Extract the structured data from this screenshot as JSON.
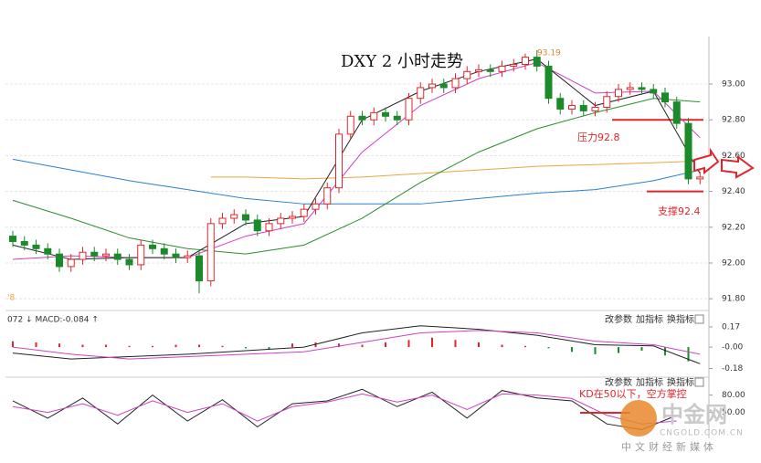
{
  "chart_data": [
    {
      "type": "candlestick",
      "title": "DXY 2 小时走势",
      "left_note": "'8",
      "open": [
        92.15,
        92.12,
        92.1,
        92.08,
        92.05,
        91.98,
        92.02,
        92.06,
        92.04,
        92.05,
        92.02,
        91.99,
        92.1,
        92.08,
        92.05,
        92.03,
        92.04,
        91.9,
        92.22,
        92.25,
        92.27,
        92.24,
        92.18,
        92.22,
        92.25,
        92.26,
        92.3,
        92.33,
        92.42,
        92.72,
        92.82,
        92.8,
        92.84,
        92.82,
        92.8,
        92.92,
        92.98,
        93.0,
        92.98,
        93.03,
        93.07,
        93.08,
        93.07,
        93.1,
        93.11,
        93.15,
        93.1,
        92.92,
        92.86,
        92.88,
        92.85,
        92.87,
        92.93,
        92.97,
        92.98,
        92.97,
        92.95,
        92.9,
        92.78,
        92.47
      ],
      "high": [
        92.18,
        92.15,
        92.13,
        92.11,
        92.08,
        92.05,
        92.09,
        92.09,
        92.08,
        92.08,
        92.05,
        92.13,
        92.13,
        92.11,
        92.08,
        92.07,
        92.07,
        92.25,
        92.28,
        92.3,
        92.3,
        92.27,
        92.25,
        92.28,
        92.29,
        92.33,
        92.36,
        92.45,
        92.75,
        92.85,
        92.85,
        92.87,
        92.87,
        92.85,
        92.95,
        93.01,
        93.03,
        93.03,
        93.06,
        93.1,
        93.11,
        93.11,
        93.13,
        93.14,
        93.17,
        93.19,
        93.13,
        92.95,
        92.91,
        92.91,
        92.9,
        92.96,
        93.0,
        93.01,
        93.01,
        93.0,
        92.98,
        92.93,
        92.81,
        92.51
      ],
      "low": [
        92.09,
        92.07,
        92.05,
        92.02,
        91.95,
        91.95,
        91.99,
        92.01,
        92.01,
        91.99,
        91.96,
        91.96,
        92.05,
        92.02,
        92.0,
        92.0,
        91.83,
        91.87,
        92.19,
        92.22,
        92.21,
        92.15,
        92.15,
        92.19,
        92.22,
        92.23,
        92.27,
        92.3,
        92.39,
        92.69,
        92.77,
        92.77,
        92.79,
        92.77,
        92.77,
        92.89,
        92.95,
        92.95,
        92.95,
        93.0,
        93.04,
        93.04,
        93.04,
        93.07,
        93.08,
        93.07,
        92.89,
        92.83,
        92.83,
        92.82,
        92.82,
        92.84,
        92.9,
        92.94,
        92.94,
        92.92,
        92.87,
        92.75,
        92.44,
        92.44
      ],
      "close": [
        92.12,
        92.1,
        92.08,
        92.05,
        91.98,
        92.02,
        92.06,
        92.04,
        92.05,
        92.02,
        91.99,
        92.1,
        92.08,
        92.05,
        92.03,
        92.04,
        91.9,
        92.22,
        92.25,
        92.27,
        92.24,
        92.18,
        92.22,
        92.25,
        92.26,
        92.3,
        92.33,
        92.42,
        92.72,
        92.82,
        92.8,
        92.84,
        92.82,
        92.8,
        92.92,
        92.98,
        93.0,
        92.98,
        93.03,
        93.07,
        93.08,
        93.07,
        93.1,
        93.11,
        93.15,
        93.1,
        92.92,
        92.86,
        92.88,
        92.85,
        92.87,
        92.93,
        92.97,
        92.98,
        92.97,
        92.95,
        92.9,
        92.78,
        92.47,
        92.48
      ],
      "up_color": "#e0262b",
      "down_color": "#1a8a2a",
      "series": [
        {
          "color": "#2a7fd0",
          "x": [
            0,
            5,
            10,
            15,
            20,
            25,
            30,
            35,
            40,
            45,
            50,
            55,
            59
          ],
          "values": [
            92.58,
            92.52,
            92.46,
            92.41,
            92.36,
            92.33,
            92.33,
            92.33,
            92.36,
            92.39,
            92.41,
            92.46,
            92.52
          ]
        },
        {
          "color": "#e8a640",
          "x": [
            0,
            5,
            10,
            15,
            17,
            20,
            25,
            30,
            35,
            40,
            45,
            50,
            55,
            59
          ],
          "values": [
            null,
            null,
            null,
            null,
            92.48,
            92.48,
            92.47,
            92.48,
            92.5,
            92.52,
            92.54,
            92.55,
            92.56,
            92.57
          ]
        },
        {
          "color": "#2e8b2e",
          "x": [
            0,
            5,
            10,
            15,
            20,
            25,
            30,
            35,
            40,
            45,
            50,
            55,
            59
          ],
          "values": [
            92.35,
            92.25,
            92.14,
            92.08,
            92.05,
            92.1,
            92.25,
            92.45,
            92.62,
            92.75,
            92.84,
            92.92,
            92.9
          ]
        },
        {
          "color": "#d040c0",
          "x": [
            0,
            5,
            10,
            15,
            20,
            25,
            30,
            35,
            40,
            45,
            50,
            55,
            59
          ],
          "values": [
            92.02,
            92.04,
            92.03,
            92.03,
            92.15,
            92.22,
            92.62,
            92.88,
            93.03,
            93.12,
            92.95,
            92.96,
            92.7
          ]
        },
        {
          "color": "#222222",
          "x": [
            0,
            5,
            10,
            15,
            20,
            25,
            30,
            35,
            40,
            45,
            50,
            55,
            59
          ],
          "values": [
            92.1,
            92.02,
            92.03,
            92.03,
            92.22,
            92.26,
            92.8,
            92.96,
            93.07,
            93.14,
            92.88,
            92.96,
            92.5
          ]
        }
      ],
      "peak_label": "93.19",
      "resistance": 92.8,
      "resistance_label": "压力92.8",
      "support": 92.4,
      "support_label": "支撑92.4",
      "ylim": [
        91.76,
        93.24
      ],
      "yticks": [
        {
          "value": 91.8,
          "label": "91.80"
        },
        {
          "value": 92,
          "label": "92.00"
        },
        {
          "value": 92.2,
          "label": "92.20"
        },
        {
          "value": 92.4,
          "label": "92.40"
        },
        {
          "value": 92.6,
          "label": "92.60"
        },
        {
          "value": 92.8,
          "label": "92.80"
        },
        {
          "value": 93,
          "label": "93.00"
        }
      ],
      "grid": true
    },
    {
      "type": "macd",
      "legend_text": "072 ↓ MACD:-0.084 ↑",
      "buttons": [
        "改参数",
        "加指标",
        "换指标"
      ],
      "bar_x": [
        0,
        2,
        4,
        6,
        8,
        10,
        12,
        14,
        16,
        18,
        20,
        22,
        24,
        26,
        28,
        30,
        32,
        34,
        36,
        38,
        40,
        42,
        44,
        46,
        48,
        50,
        52,
        54,
        56,
        58
      ],
      "bars": [
        0.05,
        0.04,
        0.03,
        0.02,
        0.02,
        0.01,
        0.01,
        0.02,
        0.02,
        0.01,
        -0.01,
        -0.02,
        0.03,
        0.04,
        0.03,
        0.02,
        0.04,
        0.06,
        0.08,
        0.06,
        0.04,
        0.02,
        0.01,
        -0.01,
        -0.04,
        -0.06,
        -0.05,
        -0.03,
        -0.07,
        -0.12
      ],
      "up_color": "#e0262b",
      "down_color": "#1a8a2a",
      "series": [
        {
          "color": "#222222",
          "x": [
            0,
            5,
            10,
            15,
            20,
            25,
            30,
            35,
            40,
            45,
            50,
            55,
            59
          ],
          "values": [
            -0.05,
            -0.1,
            -0.08,
            -0.06,
            -0.03,
            0.0,
            0.12,
            0.18,
            0.15,
            0.1,
            0.02,
            0.01,
            -0.14
          ]
        },
        {
          "color": "#d040c0",
          "x": [
            0,
            5,
            10,
            15,
            20,
            25,
            30,
            35,
            40,
            45,
            50,
            55,
            59
          ],
          "values": [
            0.0,
            -0.06,
            -0.1,
            -0.08,
            -0.06,
            -0.04,
            0.04,
            0.12,
            0.14,
            0.12,
            0.05,
            0.02,
            -0.06
          ]
        }
      ],
      "ylim": [
        -0.23,
        0.27
      ],
      "yticks": [
        0.17,
        {
          "value": 0,
          "label": "-0.00"
        },
        -0.18
      ]
    },
    {
      "type": "line",
      "buttons": [
        "改参数",
        "加指标",
        "换指标"
      ],
      "annotation": "KD在50以下，空方掌控",
      "series": [
        {
          "color": "#222222",
          "x": [
            0,
            3,
            6,
            9,
            12,
            15,
            18,
            21,
            24,
            27,
            30,
            33,
            36,
            39,
            42,
            45,
            48,
            51,
            54,
            57
          ],
          "values": [
            70,
            40,
            75,
            30,
            80,
            35,
            72,
            25,
            65,
            70,
            90,
            60,
            85,
            40,
            88,
            75,
            70,
            30,
            20,
            45
          ]
        },
        {
          "color": "#d040c0",
          "x": [
            0,
            3,
            6,
            9,
            12,
            15,
            18,
            21,
            24,
            27,
            30,
            33,
            36,
            39,
            42,
            45,
            48,
            51,
            54,
            57
          ],
          "values": [
            60,
            50,
            65,
            45,
            70,
            50,
            65,
            35,
            60,
            68,
            82,
            68,
            80,
            55,
            82,
            80,
            74,
            45,
            30,
            35
          ]
        }
      ],
      "ylim": [
        5,
        100
      ],
      "yticks": [
        {
          "value": 80,
          "label": "80.00"
        },
        {
          "value": 50,
          "label": "50.00"
        }
      ]
    }
  ],
  "watermark": {
    "name": "中金网",
    "url": "CNGOLD.COM.CN",
    "slogan": "中文财经新媒体"
  }
}
